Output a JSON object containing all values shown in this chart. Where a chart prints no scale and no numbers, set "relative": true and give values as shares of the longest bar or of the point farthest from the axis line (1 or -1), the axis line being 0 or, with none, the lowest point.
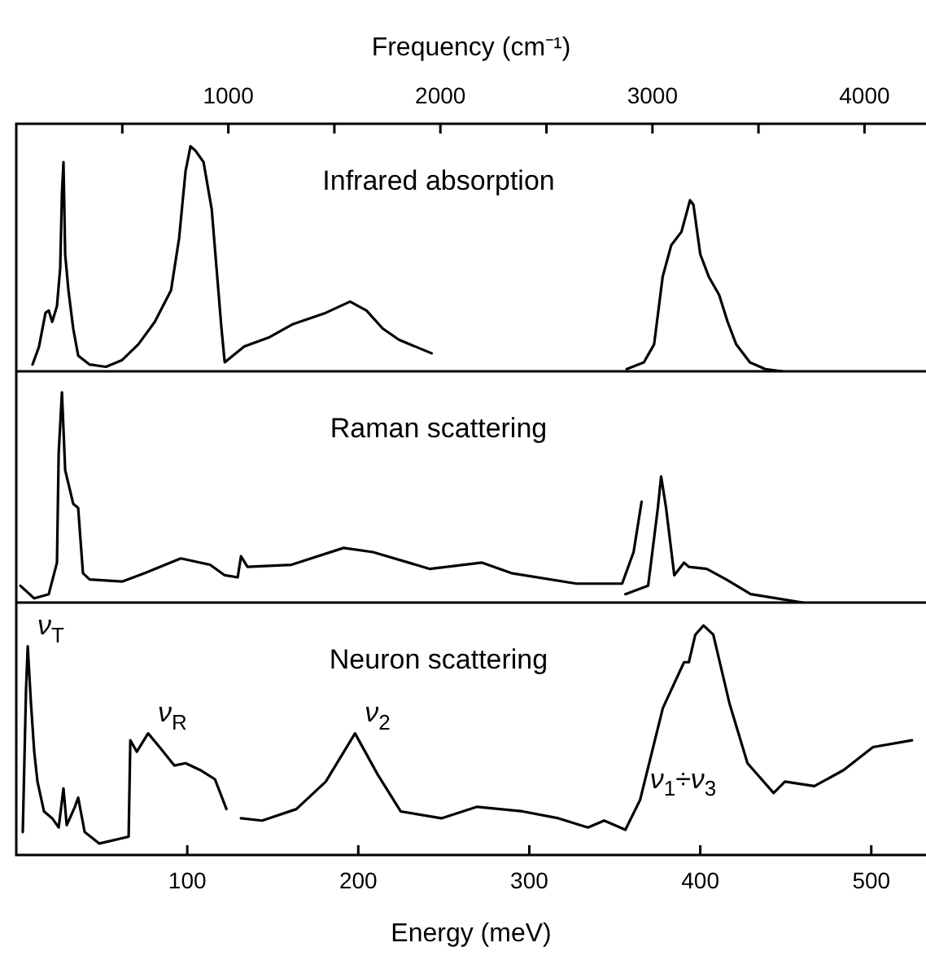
{
  "chart_data": [
    {
      "type": "line",
      "title": "Infrared absorption",
      "relative": true,
      "marker": "none",
      "xlim": [
        0,
        532
      ],
      "tick_labels": false,
      "x2lim": [
        0,
        4290
      ],
      "x2ticks": [
        {
          "value": 500,
          "label": null
        },
        1000,
        {
          "value": 1500,
          "label": null
        },
        2000,
        {
          "value": 2500,
          "label": null
        },
        3000,
        {
          "value": 3500,
          "label": null
        },
        4000
      ],
      "x2label": "Frequency (cm⁻¹)",
      "series": [
        {
          "color": "#000000",
          "x": [
            9.5,
            13.3,
            17.1,
            19,
            21,
            23.8,
            25.7,
            26.7,
            27.6,
            28.6,
            30.5,
            33.3,
            36.2,
            42.9,
            52.4,
            61.9,
            71.4,
            81,
            90.5,
            95.2,
            99,
            101.9,
            104.8,
            109.5,
            114.3,
            117.1,
            120,
            121.9,
            126.7,
            133.3,
            147.6,
            161.9,
            181,
            195.2,
            204.8,
            214.3,
            223.8,
            242.9
          ],
          "values": [
            0.03,
            0.11,
            0.26,
            0.27,
            0.22,
            0.29,
            0.46,
            0.79,
            0.93,
            0.52,
            0.36,
            0.19,
            0.07,
            0.03,
            0.02,
            0.05,
            0.12,
            0.22,
            0.36,
            0.59,
            0.89,
            1,
            0.98,
            0.93,
            0.72,
            0.46,
            0.19,
            0.04,
            0.07,
            0.11,
            0.15,
            0.21,
            0.26,
            0.31,
            0.27,
            0.19,
            0.14,
            0.08
          ]
        },
        {
          "color": "#000000",
          "x": [
            357,
            367,
            373,
            378,
            383,
            389,
            394,
            396,
            400,
            405,
            411,
            416,
            421,
            429,
            438,
            448
          ],
          "values": [
            0.01,
            0.04,
            0.12,
            0.42,
            0.56,
            0.62,
            0.76,
            0.74,
            0.52,
            0.42,
            0.34,
            0.22,
            0.12,
            0.04,
            0.01,
            0
          ]
        }
      ]
    },
    {
      "type": "line",
      "title": "Raman scattering",
      "relative": true,
      "marker": "none",
      "xlim": [
        0,
        532
      ],
      "tick_labels": false,
      "series": [
        {
          "color": "#000000",
          "x": [
            2.4,
            10.5,
            19,
            23.8,
            24.8,
            26.7,
            28.6,
            33.3,
            36.2,
            39,
            42.9,
            61.9,
            75.2,
            96.2,
            113.3,
            121.9,
            129.5,
            131.4,
            135.2,
            161,
            191.4,
            208.6,
            241.9,
            272.4,
            289.5,
            327.6,
            354.3,
            361,
            365.7
          ],
          "values": [
            0.08,
            0.02,
            0.04,
            0.19,
            0.71,
            1,
            0.63,
            0.47,
            0.45,
            0.14,
            0.11,
            0.1,
            0.14,
            0.21,
            0.18,
            0.13,
            0.12,
            0.22,
            0.17,
            0.18,
            0.26,
            0.24,
            0.16,
            0.19,
            0.14,
            0.09,
            0.09,
            0.24,
            0.48
          ]
        },
        {
          "color": "#000000",
          "x": [
            356.2,
            369.5,
            375.2,
            377.1,
            380,
            384.8,
            390.5,
            393.3,
            403.8,
            415.2,
            429.5,
            460
          ],
          "values": [
            0.04,
            0.08,
            0.45,
            0.6,
            0.45,
            0.13,
            0.19,
            0.17,
            0.16,
            0.11,
            0.04,
            0
          ]
        }
      ]
    },
    {
      "type": "line",
      "title": "Neuron scattering",
      "relative": true,
      "marker": "none",
      "xlim": [
        0,
        532
      ],
      "xticks": [
        100,
        200,
        300,
        400,
        500
      ],
      "xlabel": "Energy (meV)",
      "annotations": [
        {
          "text": "ν$_{T}$",
          "x": 6.7,
          "y": 0.91
        },
        {
          "text": "ν$_{R}$",
          "x": 77.1,
          "y": 0.53
        },
        {
          "text": "ν$_{2}$",
          "x": 198.1,
          "y": 0.53
        },
        {
          "text": "ν$_{1}$÷ν$_{3}$",
          "x": 364.8,
          "y": 0.24
        }
      ],
      "series": [
        {
          "color": "#000000",
          "x": [
            3.8,
            5.7,
            6.7,
            8.6,
            10.5,
            12.4,
            16.2,
            21,
            24.8,
            27.6,
            29.5,
            34.3,
            36.2,
            40,
            48.6,
            65.7,
            66.7,
            70.5,
            77.1,
            83.8,
            92.4,
            99,
            107.6,
            116.2,
            122.9,
            127,
            131.4,
            143.8,
            163.8,
            181,
            198.1,
            211.4,
            224.8,
            248.6,
            269.5,
            296.2,
            317.1,
            334.3,
            343.8,
            356.2,
            364.8,
            378.1,
            390.5,
            393.3,
            397.1,
            401.9,
            407.6,
            417.1,
            427.6,
            442.9,
            449.5,
            466.7,
            483.8,
            501,
            523.8
          ],
          "values": [
            0.1,
            0.72,
            0.91,
            0.66,
            0.45,
            0.32,
            0.19,
            0.16,
            0.12,
            0.29,
            0.13,
            0.21,
            0.25,
            0.1,
            0.05,
            0.08,
            0.5,
            0.45,
            0.53,
            0.47,
            0.39,
            0.4,
            0.37,
            0.33,
            0.2,
            null,
            0.16,
            0.15,
            0.2,
            0.32,
            0.53,
            0.35,
            0.19,
            0.16,
            0.21,
            0.19,
            0.16,
            0.12,
            0.15,
            0.11,
            0.24,
            0.64,
            0.84,
            0.84,
            0.96,
            1,
            0.96,
            0.66,
            0.4,
            0.27,
            0.32,
            0.3,
            0.37,
            0.47,
            0.5
          ]
        }
      ]
    }
  ]
}
